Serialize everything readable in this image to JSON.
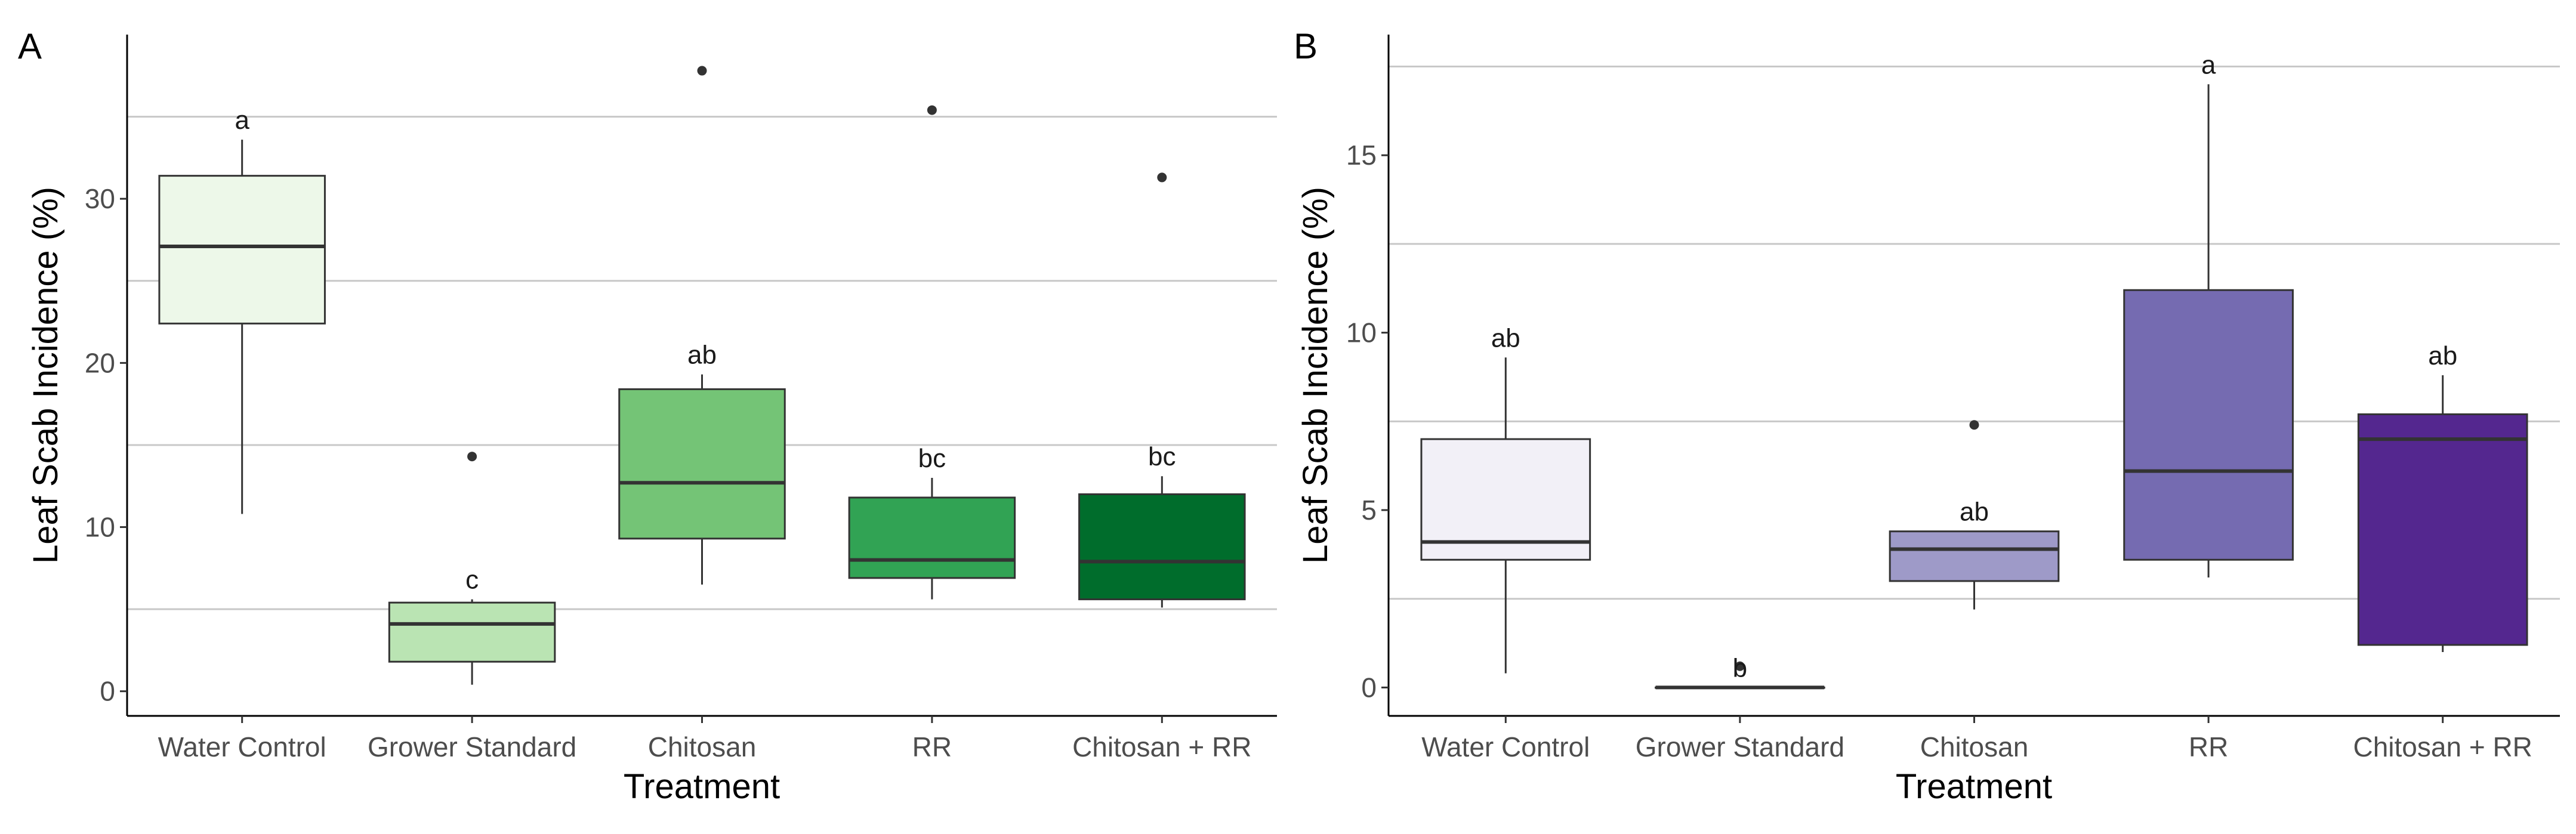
{
  "chart_data": [
    {
      "panel": "A",
      "type": "box",
      "xlabel": "Treatment",
      "ylabel": "Leaf Scab Incidence (%)",
      "ylim": [
        -1.5,
        40
      ],
      "yticks": [
        0,
        10,
        20,
        30
      ],
      "gridlines": [
        5,
        15,
        25,
        35
      ],
      "categories": [
        "Water Control",
        "Grower Standard",
        "Chitosan",
        "RR",
        "Chitosan + RR"
      ],
      "boxes": [
        {
          "min": 10.8,
          "q1": 22.4,
          "median": 27.1,
          "q3": 31.4,
          "max": 33.6,
          "outliers": [],
          "letter": "a",
          "color": "#edf8e9"
        },
        {
          "min": 0.4,
          "q1": 1.8,
          "median": 4.1,
          "q3": 5.4,
          "max": 5.6,
          "outliers": [
            14.3
          ],
          "letter": "c",
          "color": "#bae4b3"
        },
        {
          "min": 6.5,
          "q1": 9.3,
          "median": 12.7,
          "q3": 18.4,
          "max": 19.3,
          "outliers": [
            37.8
          ],
          "letter": "ab",
          "color": "#74c476"
        },
        {
          "min": 5.6,
          "q1": 6.9,
          "median": 8.0,
          "q3": 11.8,
          "max": 13.0,
          "outliers": [
            35.4
          ],
          "letter": "bc",
          "color": "#31a354"
        },
        {
          "min": 5.1,
          "q1": 5.6,
          "median": 7.9,
          "q3": 12.0,
          "max": 13.1,
          "outliers": [
            31.3
          ],
          "letter": "bc",
          "color": "#006d2c"
        }
      ]
    },
    {
      "panel": "B",
      "type": "box",
      "xlabel": "Treatment",
      "ylabel": "Leaf Scab Incidence (%)",
      "ylim": [
        -0.8,
        18.4
      ],
      "yticks": [
        0,
        5,
        10,
        15
      ],
      "gridlines": [
        2.5,
        7.5,
        12.5,
        17.5
      ],
      "categories": [
        "Water Control",
        "Grower Standard",
        "Chitosan",
        "RR",
        "Chitosan + RR"
      ],
      "boxes": [
        {
          "min": 0.4,
          "q1": 3.6,
          "median": 4.1,
          "q3": 7.0,
          "max": 9.3,
          "outliers": [],
          "letter": "ab",
          "color": "#f2f0f7"
        },
        {
          "min": 0.0,
          "q1": 0.0,
          "median": 0.0,
          "q3": 0.0,
          "max": 0.0,
          "outliers": [
            0.6
          ],
          "letter": "b",
          "color": "#cbc9e2"
        },
        {
          "min": 2.2,
          "q1": 3.0,
          "median": 3.9,
          "q3": 4.4,
          "max": 4.4,
          "outliers": [
            7.4
          ],
          "letter": "ab",
          "color": "#9e9ac8"
        },
        {
          "min": 3.1,
          "q1": 3.6,
          "median": 6.1,
          "q3": 11.2,
          "max": 17.0,
          "outliers": [],
          "letter": "a",
          "color": "#756bb1"
        },
        {
          "min": 1.0,
          "q1": 1.2,
          "median": 7.0,
          "q3": 7.7,
          "max": 8.8,
          "outliers": [],
          "letter": "ab",
          "color": "#54278f"
        }
      ]
    }
  ]
}
